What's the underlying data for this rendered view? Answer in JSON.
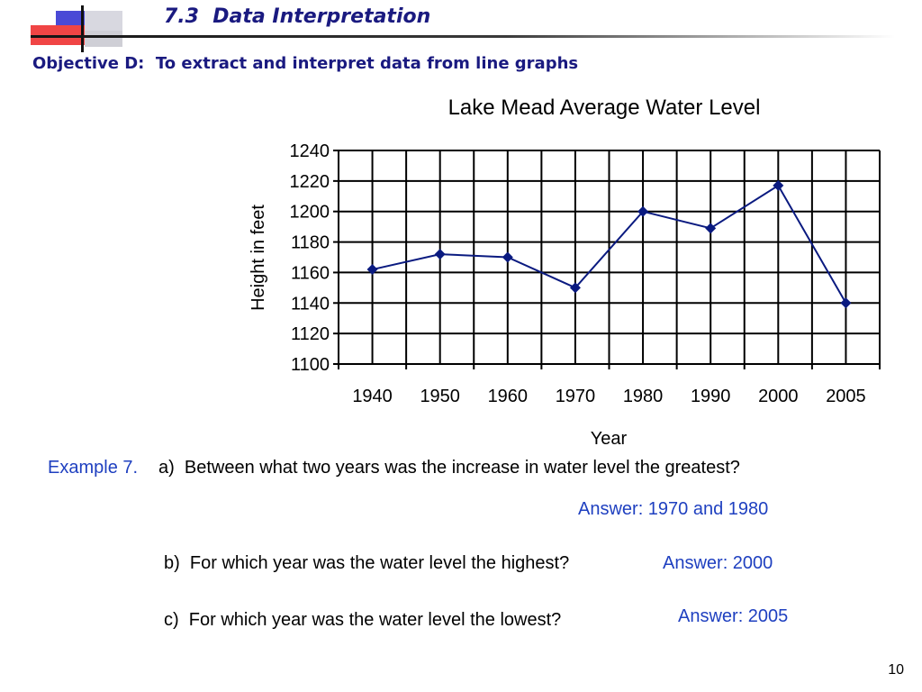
{
  "header": {
    "title": "7.3  Data Interpretation",
    "objective": "Objective D:  To extract and interpret data from line graphs"
  },
  "chart_data": {
    "type": "line",
    "title": "Lake Mead Average Water Level",
    "xlabel": "Year",
    "ylabel": "Height in feet",
    "categories": [
      "1940",
      "1950",
      "1960",
      "1970",
      "1980",
      "1990",
      "2000",
      "2005"
    ],
    "series": [
      {
        "values": [
          1162,
          1172,
          1170,
          1150,
          1200,
          1189,
          1217,
          1140
        ],
        "color": "#0a1a80",
        "marker": "diamond"
      }
    ],
    "ylim": [
      1100,
      1240
    ],
    "yticks": [
      "1100",
      "1120",
      "1140",
      "1160",
      "1180",
      "1200",
      "1220",
      "1240"
    ],
    "grid": true
  },
  "example": {
    "label": "Example 7.",
    "questions": [
      {
        "text": "a)  Between what two years was the increase in water level the greatest?",
        "answer": "Answer: 1970 and 1980"
      },
      {
        "text": "b)  For which year was the water level the highest?",
        "answer": "Answer: 2000"
      },
      {
        "text": "c)  For which year was the water level the lowest?",
        "answer": "Answer: 2005"
      }
    ]
  },
  "footer": {
    "page_number": "10"
  },
  "colors": {
    "heading": "#1a1a80",
    "answer": "#1f40c0",
    "series": "#0a1a80"
  }
}
